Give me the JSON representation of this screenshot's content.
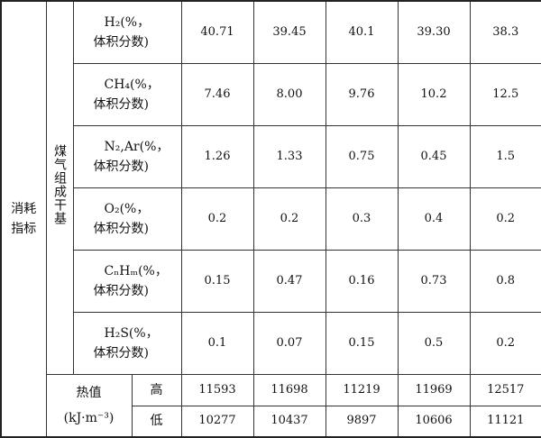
{
  "table": {
    "side_label": "消耗指标",
    "group_label": "煤气组成干基",
    "rows": [
      {
        "label": [
          "H₂(%，",
          "体积分数)"
        ],
        "values": [
          "40.71",
          "39.45",
          "40.1",
          "39.30",
          "38.3"
        ]
      },
      {
        "label": [
          "CH₄(%，",
          "体积分数)"
        ],
        "values": [
          "7.46",
          "8.00",
          "9.76",
          "10.2",
          "12.5"
        ]
      },
      {
        "label": [
          "N₂,Ar(%，",
          "体积分数)"
        ],
        "values": [
          "1.26",
          "1.33",
          "0.75",
          "0.45",
          "1.5"
        ]
      },
      {
        "label": [
          "O₂(%，",
          "体积分数)"
        ],
        "values": [
          "0.2",
          "0.2",
          "0.3",
          "0.4",
          "0.2"
        ]
      },
      {
        "label": [
          "CₙHₘ(%，",
          "体积分数)"
        ],
        "values": [
          "0.15",
          "0.47",
          "0.16",
          "0.73",
          "0.8"
        ]
      },
      {
        "label": [
          "H₂S(%，",
          "体积分数)"
        ],
        "values": [
          "0.1",
          "0.07",
          "0.15",
          "0.5",
          "0.2"
        ]
      }
    ],
    "heat": {
      "label": [
        "热值",
        "(kJ·m⁻³)"
      ],
      "rows": [
        {
          "label": "高",
          "values": [
            "11593",
            "11698",
            "11219",
            "11969",
            "12517"
          ]
        },
        {
          "label": "低",
          "values": [
            "10277",
            "10437",
            "9897",
            "10606",
            "11121"
          ]
        }
      ]
    }
  }
}
